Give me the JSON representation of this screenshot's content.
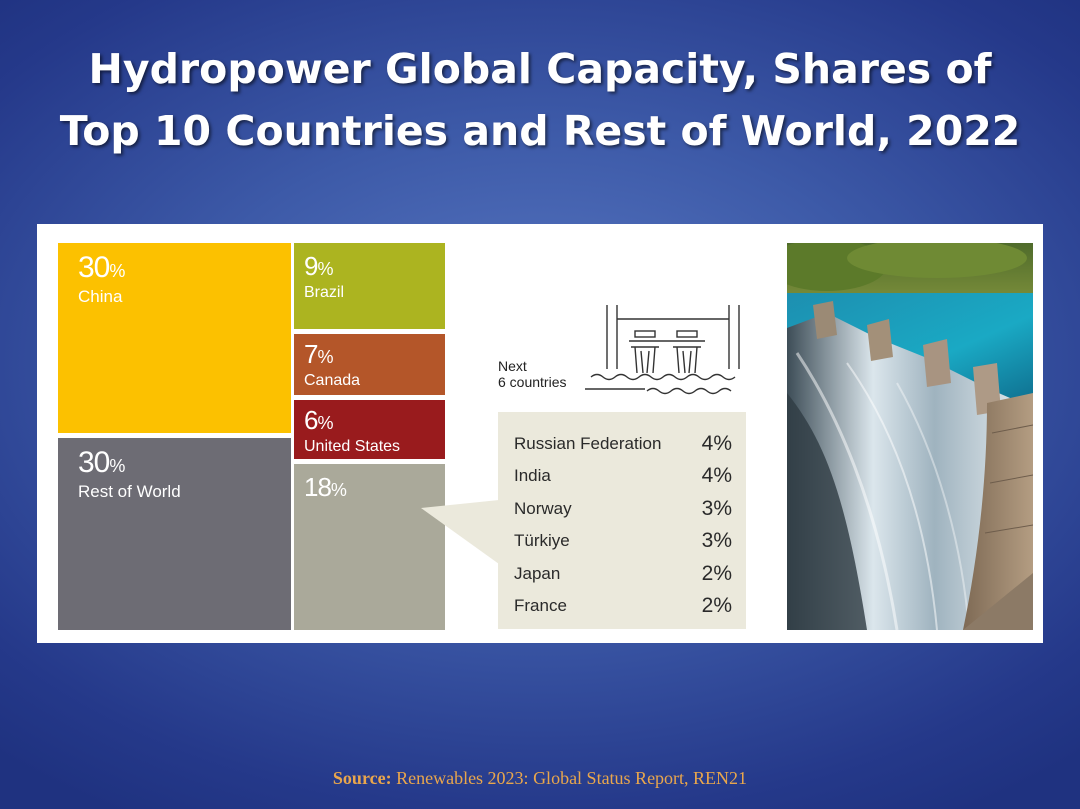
{
  "title_line1": "Hydropower Global Capacity, Shares of",
  "title_line2": "Top 10 Countries and Rest of World, 2022",
  "source_label": "Source:",
  "source_text": "Renewables 2023: Global Status Report, REN21",
  "next_label_line1": "Next",
  "next_label_line2": "6 countries",
  "colors": {
    "china": "#fcc100",
    "rest_of_world": "#6d6c74",
    "brazil": "#acb420",
    "canada": "#b45629",
    "united_states": "#991b1d",
    "next_six": "#aaa99a",
    "callout_bg": "#ebe9dc"
  },
  "chart_data": {
    "type": "treemap",
    "title": "Hydropower Global Capacity, Shares of Top 10 Countries and Rest of World, 2022",
    "unit": "%",
    "tiles": [
      {
        "name": "China",
        "value": 30,
        "pct_number": "30",
        "pct_sign": "%"
      },
      {
        "name": "Rest of World",
        "value": 30,
        "pct_number": "30",
        "pct_sign": "%"
      },
      {
        "name": "Brazil",
        "value": 9,
        "pct_number": "9",
        "pct_sign": "%"
      },
      {
        "name": "Canada",
        "value": 7,
        "pct_number": "7",
        "pct_sign": "%"
      },
      {
        "name": "United States",
        "value": 6,
        "pct_number": "6",
        "pct_sign": "%"
      },
      {
        "name": "Next 6 countries",
        "value": 18,
        "pct_number": "18",
        "pct_sign": "%"
      }
    ],
    "next_six_breakdown": [
      {
        "name": "Russian Federation",
        "value": 4,
        "label": "4%"
      },
      {
        "name": "India",
        "value": 4,
        "label": "4%"
      },
      {
        "name": "Norway",
        "value": 3,
        "label": "3%"
      },
      {
        "name": "Türkiye",
        "value": 3,
        "label": "3%"
      },
      {
        "name": "Japan",
        "value": 2,
        "label": "2%"
      },
      {
        "name": "France",
        "value": 2,
        "label": "2%"
      }
    ]
  }
}
